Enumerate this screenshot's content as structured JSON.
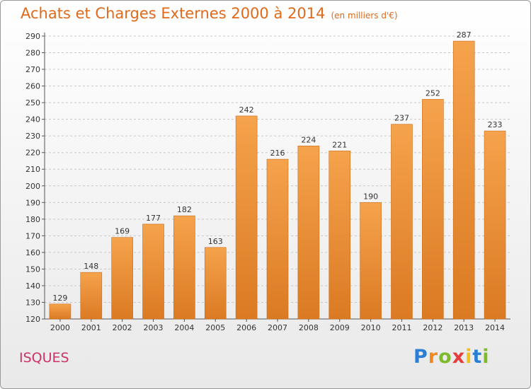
{
  "header": {
    "title": "Achats et Charges Externes 2000 à 2014",
    "subtitle": "(en milliers d'€)"
  },
  "footer": {
    "commune": "ISQUES",
    "logo_letters": [
      "P",
      "r",
      "o",
      "x",
      "i",
      "t",
      "i"
    ],
    "logo_colors": [
      "#2a7fd4",
      "#f08a1e",
      "#7dbb2a",
      "#e63c3c",
      "#f0c020",
      "#2a7fd4",
      "#7dbb2a"
    ]
  },
  "colors": {
    "bar_light": "#f5a34c",
    "bar_dark": "#db7a23",
    "title": "#e0691a",
    "commune": "#cc3366"
  },
  "chart_data": {
    "type": "bar",
    "title": "Achats et Charges Externes 2000 à 2014",
    "subtitle": "(en milliers d'€)",
    "xlabel": "",
    "ylabel": "",
    "categories": [
      "2000",
      "2001",
      "2002",
      "2003",
      "2004",
      "2005",
      "2006",
      "2007",
      "2008",
      "2009",
      "2010",
      "2011",
      "2012",
      "2013",
      "2014"
    ],
    "values": [
      129,
      148,
      169,
      177,
      182,
      163,
      242,
      216,
      224,
      221,
      190,
      237,
      252,
      287,
      233
    ],
    "ylim": [
      120,
      290
    ],
    "yticks": [
      120,
      130,
      140,
      150,
      160,
      170,
      180,
      190,
      200,
      210,
      220,
      230,
      240,
      250,
      260,
      270,
      280,
      290
    ],
    "grid": "horizontal dashed",
    "legend": "none"
  }
}
